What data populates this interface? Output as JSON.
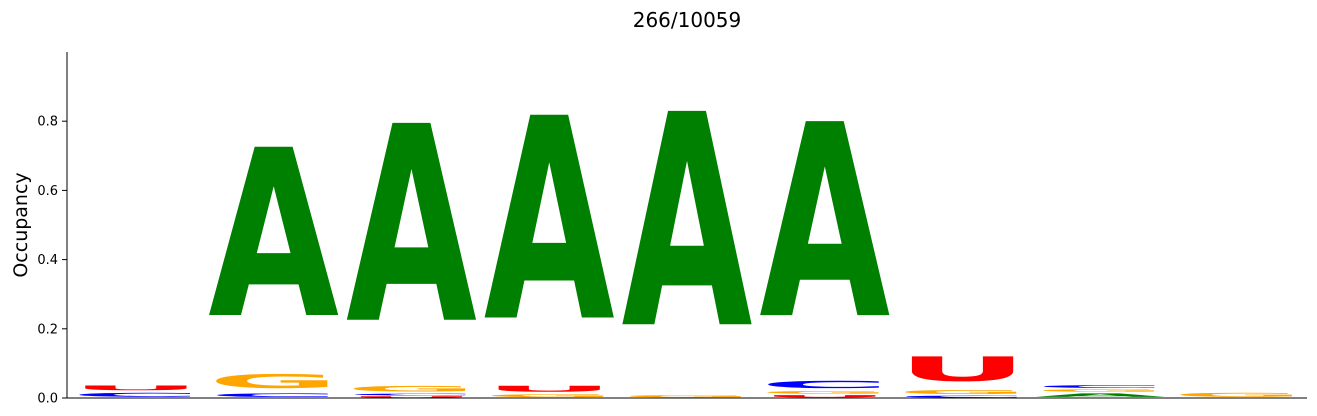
{
  "chart_data": {
    "type": "sequence-logo",
    "title": "266/10059",
    "ylabel": "Occupancy",
    "xlabel": "",
    "ylim": [
      0,
      1.0
    ],
    "yticks": [
      0.0,
      0.2,
      0.4,
      0.6,
      0.8
    ],
    "ytick_labels": [
      "0.0",
      "0.2",
      "0.4",
      "0.6",
      "0.8"
    ],
    "colors": {
      "A": "#008000",
      "C": "#0000ff",
      "G": "#ffa500",
      "U": "#ff0000"
    },
    "positions": [
      {
        "index": 1,
        "stack": [
          {
            "letter": "C",
            "value": 0.018
          },
          {
            "letter": "U",
            "value": 0.022
          }
        ]
      },
      {
        "index": 2,
        "stack": [
          {
            "letter": "C",
            "value": 0.016
          },
          {
            "letter": "G",
            "value": 0.064
          },
          {
            "letter": "A",
            "value": 0.78
          }
        ]
      },
      {
        "index": 3,
        "stack": [
          {
            "letter": "U",
            "value": 0.006
          },
          {
            "letter": "C",
            "value": 0.008
          },
          {
            "letter": "G",
            "value": 0.025
          },
          {
            "letter": "A",
            "value": 0.913
          }
        ]
      },
      {
        "index": 4,
        "stack": [
          {
            "letter": "G",
            "value": 0.013
          },
          {
            "letter": "U",
            "value": 0.027
          },
          {
            "letter": "A",
            "value": 0.94
          }
        ]
      },
      {
        "index": 5,
        "stack": [
          {
            "letter": "G",
            "value": 0.01
          },
          {
            "letter": "A",
            "value": 0.99
          }
        ]
      },
      {
        "index": 6,
        "stack": [
          {
            "letter": "U",
            "value": 0.01
          },
          {
            "letter": "G",
            "value": 0.012
          },
          {
            "letter": "C",
            "value": 0.033
          },
          {
            "letter": "A",
            "value": 0.9
          }
        ]
      },
      {
        "index": 7,
        "stack": [
          {
            "letter": "C",
            "value": 0.008
          },
          {
            "letter": "G",
            "value": 0.018
          },
          {
            "letter": "U",
            "value": 0.114
          }
        ]
      },
      {
        "index": 8,
        "stack": [
          {
            "letter": "A",
            "value": 0.016
          },
          {
            "letter": "G",
            "value": 0.011
          },
          {
            "letter": "C",
            "value": 0.012
          }
        ]
      },
      {
        "index": 9,
        "stack": [
          {
            "letter": "G",
            "value": 0.018
          }
        ]
      }
    ]
  }
}
